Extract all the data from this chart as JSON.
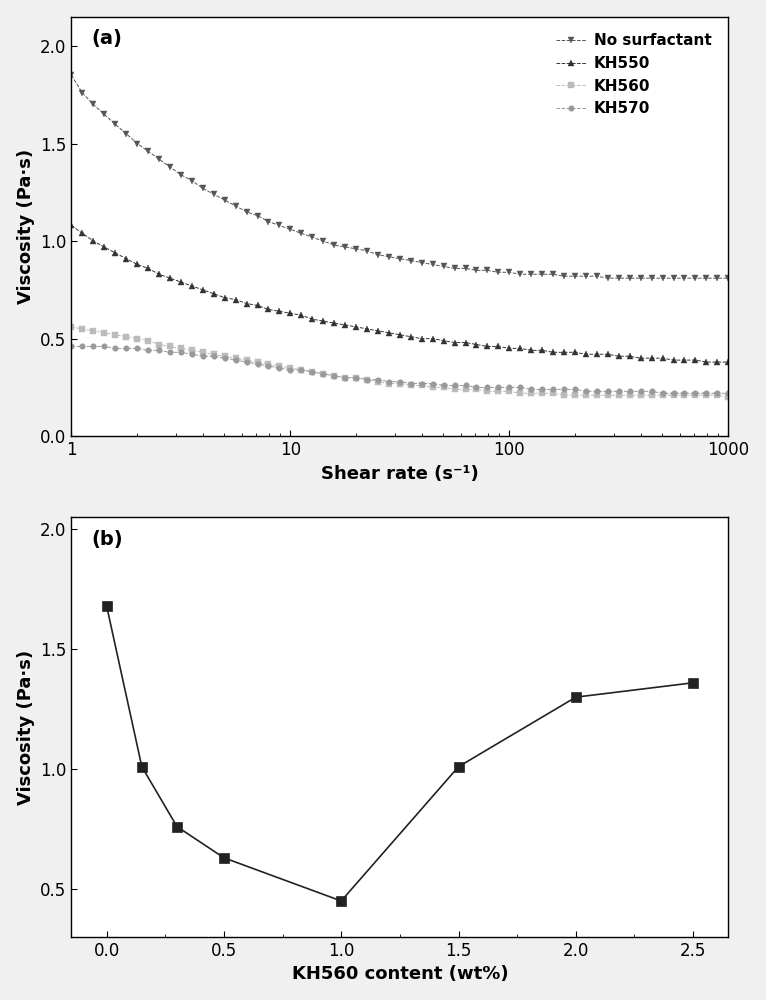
{
  "panel_a": {
    "title": "(a)",
    "xlabel": "Shear rate (s⁻¹)",
    "ylabel": "Viscosity (Pa·s)",
    "xlim": [
      1,
      1000
    ],
    "ylim": [
      0.0,
      2.15
    ],
    "yticks": [
      0.0,
      0.5,
      1.0,
      1.5,
      2.0
    ],
    "series": {
      "No surfactant": {
        "color": "#555555",
        "marker": "v",
        "linestyle": "--",
        "markersize": 5,
        "linewidth": 0.7,
        "x": [
          1.0,
          1.12,
          1.26,
          1.41,
          1.58,
          1.78,
          2.0,
          2.24,
          2.51,
          2.82,
          3.16,
          3.55,
          3.98,
          4.47,
          5.01,
          5.62,
          6.31,
          7.08,
          7.94,
          8.91,
          10.0,
          11.2,
          12.6,
          14.1,
          15.8,
          17.8,
          20.0,
          22.4,
          25.1,
          28.2,
          31.6,
          35.5,
          39.8,
          44.7,
          50.1,
          56.2,
          63.1,
          70.8,
          79.4,
          89.1,
          100.0,
          112.2,
          125.9,
          141.3,
          158.5,
          177.8,
          199.5,
          223.9,
          251.2,
          281.8,
          316.2,
          354.8,
          398.1,
          446.7,
          501.2,
          562.3,
          631.0,
          708.0,
          794.3,
          891.3,
          1000.0
        ],
        "y": [
          1.85,
          1.76,
          1.7,
          1.65,
          1.6,
          1.55,
          1.5,
          1.46,
          1.42,
          1.38,
          1.34,
          1.31,
          1.27,
          1.24,
          1.21,
          1.18,
          1.15,
          1.13,
          1.1,
          1.08,
          1.06,
          1.04,
          1.02,
          1.0,
          0.98,
          0.97,
          0.96,
          0.95,
          0.93,
          0.92,
          0.91,
          0.9,
          0.89,
          0.88,
          0.87,
          0.86,
          0.86,
          0.85,
          0.85,
          0.84,
          0.84,
          0.83,
          0.83,
          0.83,
          0.83,
          0.82,
          0.82,
          0.82,
          0.82,
          0.81,
          0.81,
          0.81,
          0.81,
          0.81,
          0.81,
          0.81,
          0.81,
          0.81,
          0.81,
          0.81,
          0.81
        ]
      },
      "KH550": {
        "color": "#333333",
        "marker": "^",
        "linestyle": "--",
        "markersize": 5,
        "linewidth": 0.7,
        "x": [
          1.0,
          1.12,
          1.26,
          1.41,
          1.58,
          1.78,
          2.0,
          2.24,
          2.51,
          2.82,
          3.16,
          3.55,
          3.98,
          4.47,
          5.01,
          5.62,
          6.31,
          7.08,
          7.94,
          8.91,
          10.0,
          11.2,
          12.6,
          14.1,
          15.8,
          17.8,
          20.0,
          22.4,
          25.1,
          28.2,
          31.6,
          35.5,
          39.8,
          44.7,
          50.1,
          56.2,
          63.1,
          70.8,
          79.4,
          89.1,
          100.0,
          112.2,
          125.9,
          141.3,
          158.5,
          177.8,
          199.5,
          223.9,
          251.2,
          281.8,
          316.2,
          354.8,
          398.1,
          446.7,
          501.2,
          562.3,
          631.0,
          708.0,
          794.3,
          891.3,
          1000.0
        ],
        "y": [
          1.08,
          1.04,
          1.0,
          0.97,
          0.94,
          0.91,
          0.88,
          0.86,
          0.83,
          0.81,
          0.79,
          0.77,
          0.75,
          0.73,
          0.71,
          0.7,
          0.68,
          0.67,
          0.65,
          0.64,
          0.63,
          0.62,
          0.6,
          0.59,
          0.58,
          0.57,
          0.56,
          0.55,
          0.54,
          0.53,
          0.52,
          0.51,
          0.5,
          0.5,
          0.49,
          0.48,
          0.48,
          0.47,
          0.46,
          0.46,
          0.45,
          0.45,
          0.44,
          0.44,
          0.43,
          0.43,
          0.43,
          0.42,
          0.42,
          0.42,
          0.41,
          0.41,
          0.4,
          0.4,
          0.4,
          0.39,
          0.39,
          0.39,
          0.38,
          0.38,
          0.38
        ]
      },
      "KH560": {
        "color": "#bbbbbb",
        "marker": "s",
        "linestyle": "--",
        "markersize": 4,
        "linewidth": 0.7,
        "x": [
          1.0,
          1.12,
          1.26,
          1.41,
          1.58,
          1.78,
          2.0,
          2.24,
          2.51,
          2.82,
          3.16,
          3.55,
          3.98,
          4.47,
          5.01,
          5.62,
          6.31,
          7.08,
          7.94,
          8.91,
          10.0,
          11.2,
          12.6,
          14.1,
          15.8,
          17.8,
          20.0,
          22.4,
          25.1,
          28.2,
          31.6,
          35.5,
          39.8,
          44.7,
          50.1,
          56.2,
          63.1,
          70.8,
          79.4,
          89.1,
          100.0,
          112.2,
          125.9,
          141.3,
          158.5,
          177.8,
          199.5,
          223.9,
          251.2,
          281.8,
          316.2,
          354.8,
          398.1,
          446.7,
          501.2,
          562.3,
          631.0,
          708.0,
          794.3,
          891.3,
          1000.0
        ],
        "y": [
          0.56,
          0.55,
          0.54,
          0.53,
          0.52,
          0.51,
          0.5,
          0.49,
          0.47,
          0.46,
          0.45,
          0.44,
          0.43,
          0.42,
          0.41,
          0.4,
          0.39,
          0.38,
          0.37,
          0.36,
          0.35,
          0.34,
          0.33,
          0.32,
          0.31,
          0.3,
          0.3,
          0.29,
          0.28,
          0.27,
          0.27,
          0.26,
          0.26,
          0.25,
          0.25,
          0.24,
          0.24,
          0.24,
          0.23,
          0.23,
          0.23,
          0.22,
          0.22,
          0.22,
          0.22,
          0.21,
          0.21,
          0.21,
          0.21,
          0.21,
          0.21,
          0.21,
          0.21,
          0.21,
          0.21,
          0.21,
          0.21,
          0.21,
          0.21,
          0.21,
          0.2
        ]
      },
      "KH570": {
        "color": "#999999",
        "marker": "o",
        "linestyle": "--",
        "markersize": 4,
        "linewidth": 0.7,
        "x": [
          1.0,
          1.12,
          1.26,
          1.41,
          1.58,
          1.78,
          2.0,
          2.24,
          2.51,
          2.82,
          3.16,
          3.55,
          3.98,
          4.47,
          5.01,
          5.62,
          6.31,
          7.08,
          7.94,
          8.91,
          10.0,
          11.2,
          12.6,
          14.1,
          15.8,
          17.8,
          20.0,
          22.4,
          25.1,
          28.2,
          31.6,
          35.5,
          39.8,
          44.7,
          50.1,
          56.2,
          63.1,
          70.8,
          79.4,
          89.1,
          100.0,
          112.2,
          125.9,
          141.3,
          158.5,
          177.8,
          199.5,
          223.9,
          251.2,
          281.8,
          316.2,
          354.8,
          398.1,
          446.7,
          501.2,
          562.3,
          631.0,
          708.0,
          794.3,
          891.3,
          1000.0
        ],
        "y": [
          0.46,
          0.46,
          0.46,
          0.46,
          0.45,
          0.45,
          0.45,
          0.44,
          0.44,
          0.43,
          0.43,
          0.42,
          0.41,
          0.41,
          0.4,
          0.39,
          0.38,
          0.37,
          0.36,
          0.35,
          0.34,
          0.34,
          0.33,
          0.32,
          0.31,
          0.3,
          0.3,
          0.29,
          0.29,
          0.28,
          0.28,
          0.27,
          0.27,
          0.27,
          0.26,
          0.26,
          0.26,
          0.25,
          0.25,
          0.25,
          0.25,
          0.25,
          0.24,
          0.24,
          0.24,
          0.24,
          0.24,
          0.23,
          0.23,
          0.23,
          0.23,
          0.23,
          0.23,
          0.23,
          0.22,
          0.22,
          0.22,
          0.22,
          0.22,
          0.22,
          0.22
        ]
      }
    }
  },
  "panel_b": {
    "title": "(b)",
    "xlabel": "KH560 content (wt%)",
    "ylabel": "Viscosity (Pa·s)",
    "xlim": [
      -0.15,
      2.65
    ],
    "ylim": [
      0.3,
      2.05
    ],
    "yticks": [
      0.5,
      1.0,
      1.5,
      2.0
    ],
    "xticks": [
      0.0,
      0.5,
      1.0,
      1.5,
      2.0,
      2.5
    ],
    "xtick_labels": [
      "0.0",
      "0.5",
      "1.0",
      "1.5",
      "2.0",
      "2.5"
    ],
    "color": "#222222",
    "marker": "s",
    "markersize": 7,
    "linewidth": 1.2,
    "x": [
      0.0,
      0.15,
      0.3,
      0.5,
      1.0,
      1.5,
      2.0,
      2.5
    ],
    "y": [
      1.68,
      1.01,
      0.76,
      0.63,
      0.45,
      1.01,
      1.3,
      1.36
    ]
  },
  "figure_bg": "#f0f0f0",
  "axes_bg": "#ffffff",
  "tick_fontsize": 12,
  "label_fontsize": 13,
  "legend_fontsize": 11
}
